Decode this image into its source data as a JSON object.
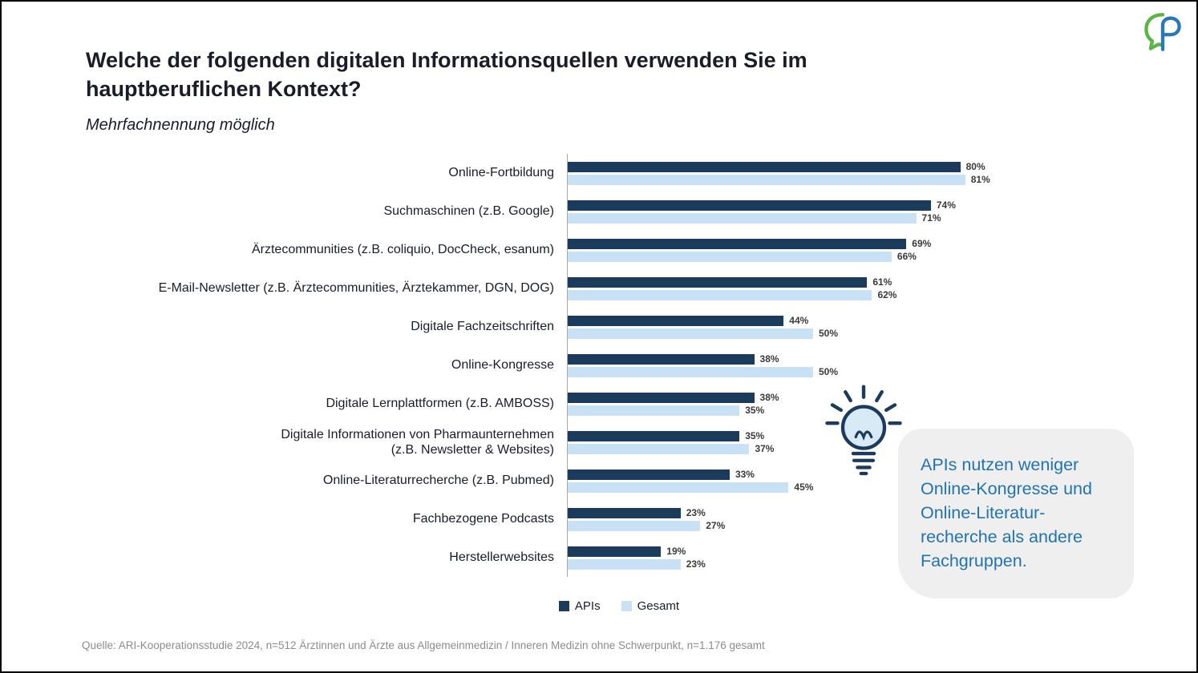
{
  "header": {
    "title": "Welche der folgenden digitalen Informationsquellen verwenden Sie im\nhauptberuflichen Kontext?",
    "subtitle": "Mehrfachnennung möglich"
  },
  "chart_data": {
    "type": "bar",
    "orientation": "horizontal",
    "title": "Welche der folgenden digitalen Informationsquellen verwenden Sie im hauptberuflichen Kontext?",
    "subtitle": "Mehrfachnennung möglich",
    "categories": [
      "Online-Fortbildung",
      "Suchmaschinen (z.B. Google)",
      "Ärztecommunities (z.B. coliquio, DocCheck, esanum)",
      "E-Mail-Newsletter (z.B. Ärztecommunities, Ärztekammer, DGN, DOG)",
      "Digitale Fachzeitschriften",
      "Online-Kongresse",
      "Digitale Lernplattformen (z.B. AMBOSS)",
      "Digitale Informationen von Pharmaunternehmen\n(z.B. Newsletter & Websites)",
      "Online-Literaturrecherche (z.B. Pubmed)",
      "Fachbezogene Podcasts",
      "Herstellerwebsites"
    ],
    "series": [
      {
        "name": "APIs",
        "color": "#1b3b5d",
        "values": [
          80,
          74,
          69,
          61,
          44,
          38,
          38,
          35,
          33,
          23,
          19
        ]
      },
      {
        "name": "Gesamt",
        "color": "#c8e1f4",
        "values": [
          81,
          71,
          66,
          62,
          50,
          50,
          35,
          37,
          45,
          27,
          23
        ]
      }
    ],
    "value_suffix": "%",
    "xlim": [
      0,
      100
    ],
    "grid": false,
    "legend_position": "bottom"
  },
  "callout": {
    "text": "APIs nutzen weniger\nOnline-Kongresse und\nOnline-Literatur-\nrecherche als andere\nFachgruppen."
  },
  "footer": {
    "source": "Quelle: ARI-Kooperationsstudie 2024, n=512 Ärztinnen und Ärzte aus Allgemeinmedizin / Inneren Medizin ohne Schwerpunkt, n=1.176 gesamt"
  },
  "colors": {
    "apis": "#1b3b5d",
    "gesamt": "#c8e1f4",
    "callout_text": "#2173b4",
    "logo_green": "#5cb447",
    "logo_blue": "#2979b8"
  }
}
